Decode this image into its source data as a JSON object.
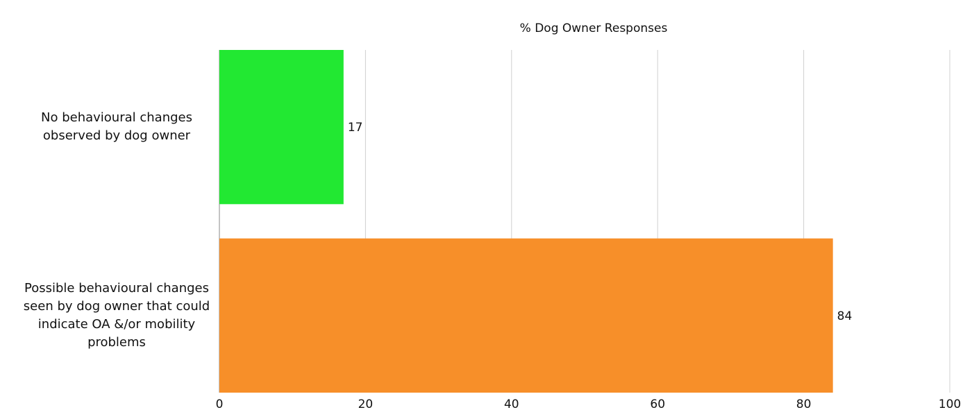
{
  "chart_data": {
    "type": "bar",
    "orientation": "horizontal",
    "xlabel": "% Dog Owner Responses",
    "ylabel": "",
    "xlim": [
      0,
      100
    ],
    "x_ticks": [
      0,
      20,
      40,
      60,
      80,
      100
    ],
    "grid": true,
    "legend": "none",
    "categories": [
      "No behavioural changes observed by dog owner",
      "Possible behavioural changes seen by dog owner that could indicate OA &/or mobility problems"
    ],
    "values": [
      17,
      84
    ],
    "data_labels": [
      "17",
      "84"
    ],
    "colors": [
      "#22e832",
      "#f78f29"
    ]
  }
}
